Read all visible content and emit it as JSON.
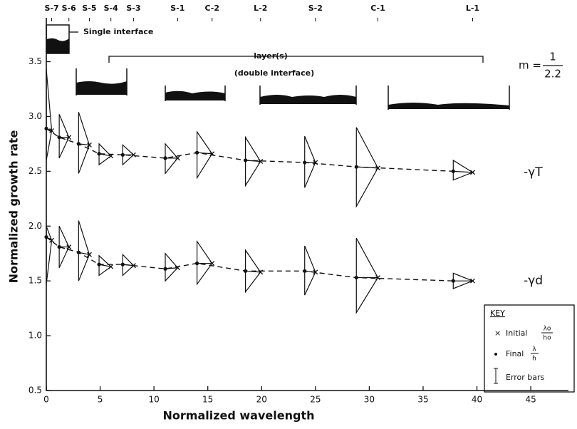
{
  "chart_data": {
    "type": "triangle-scatter",
    "xlabel": "Normalized wavelength",
    "ylabel": "Normalized growth rate",
    "xlim": [
      0,
      48.5
    ],
    "ylim": [
      0.5,
      3.9
    ],
    "xticks": [
      0,
      5,
      10,
      15,
      20,
      25,
      30,
      35,
      40,
      45
    ],
    "yticks": [
      0.5,
      {
        "value": 1,
        "label": "1.0"
      },
      1.5,
      {
        "value": 2,
        "label": "2.0"
      },
      2.5,
      {
        "value": 3,
        "label": "3.0"
      },
      3.5
    ],
    "categories": [
      "S-7",
      "S-6",
      "S-5",
      "S-4",
      "S-3",
      "S-1",
      "C-2",
      "L-2",
      "S-2",
      "C-1",
      "L-1"
    ],
    "series": [
      {
        "name": "-γT",
        "color": "#111111",
        "final_x": [
          0,
          1.2,
          3.0,
          4.9,
          7.1,
          11.05,
          14.0,
          18.5,
          24.0,
          28.8,
          37.8
        ],
        "final_y": [
          2.89,
          2.81,
          2.75,
          2.66,
          2.65,
          2.62,
          2.67,
          2.6,
          2.58,
          2.54,
          2.5
        ],
        "initial_x": [
          0.5,
          2.1,
          4.0,
          6.0,
          8.1,
          12.2,
          15.4,
          19.9,
          25.0,
          30.8,
          39.6
        ],
        "initial_y": [
          2.87,
          2.81,
          2.74,
          2.64,
          2.65,
          2.62,
          2.66,
          2.59,
          2.58,
          2.53,
          2.49
        ],
        "err_low": [
          2.6,
          2.62,
          2.48,
          2.56,
          2.56,
          2.48,
          2.44,
          2.37,
          2.35,
          2.18,
          2.42
        ],
        "err_high": [
          3.43,
          3.02,
          3.04,
          2.75,
          2.74,
          2.75,
          2.86,
          2.81,
          2.82,
          2.9,
          2.6
        ]
      },
      {
        "name": "-γd",
        "color": "#111111",
        "final_x": [
          0,
          1.2,
          3.0,
          4.9,
          7.1,
          11.05,
          14.0,
          18.5,
          24.0,
          28.8,
          37.8
        ],
        "final_y": [
          1.9,
          1.81,
          1.76,
          1.65,
          1.65,
          1.61,
          1.66,
          1.59,
          1.59,
          1.53,
          1.5
        ],
        "initial_x": [
          0.5,
          2.1,
          4.0,
          6.0,
          8.1,
          12.2,
          15.4,
          19.9,
          25.0,
          30.8,
          39.6
        ],
        "initial_y": [
          1.87,
          1.81,
          1.74,
          1.63,
          1.64,
          1.62,
          1.66,
          1.58,
          1.58,
          1.53,
          1.5
        ],
        "err_low": [
          1.47,
          1.62,
          1.5,
          1.55,
          1.55,
          1.5,
          1.47,
          1.4,
          1.37,
          1.21,
          1.43
        ],
        "err_high": [
          2.0,
          2.0,
          2.05,
          1.73,
          1.74,
          1.75,
          1.86,
          1.78,
          1.82,
          1.89,
          1.57
        ]
      }
    ],
    "annotations": {
      "single": "Single interface",
      "layers": "layer(s)",
      "double": "(double interface)",
      "m_lhs": "m =",
      "m_num": "1",
      "m_den": "2.2"
    },
    "key": {
      "title": "KEY",
      "initial": "Initial",
      "initial_num": "λo",
      "initial_den": "ho",
      "final": "Final",
      "final_num": "λ",
      "final_den": "h",
      "error": "Error bars"
    }
  }
}
